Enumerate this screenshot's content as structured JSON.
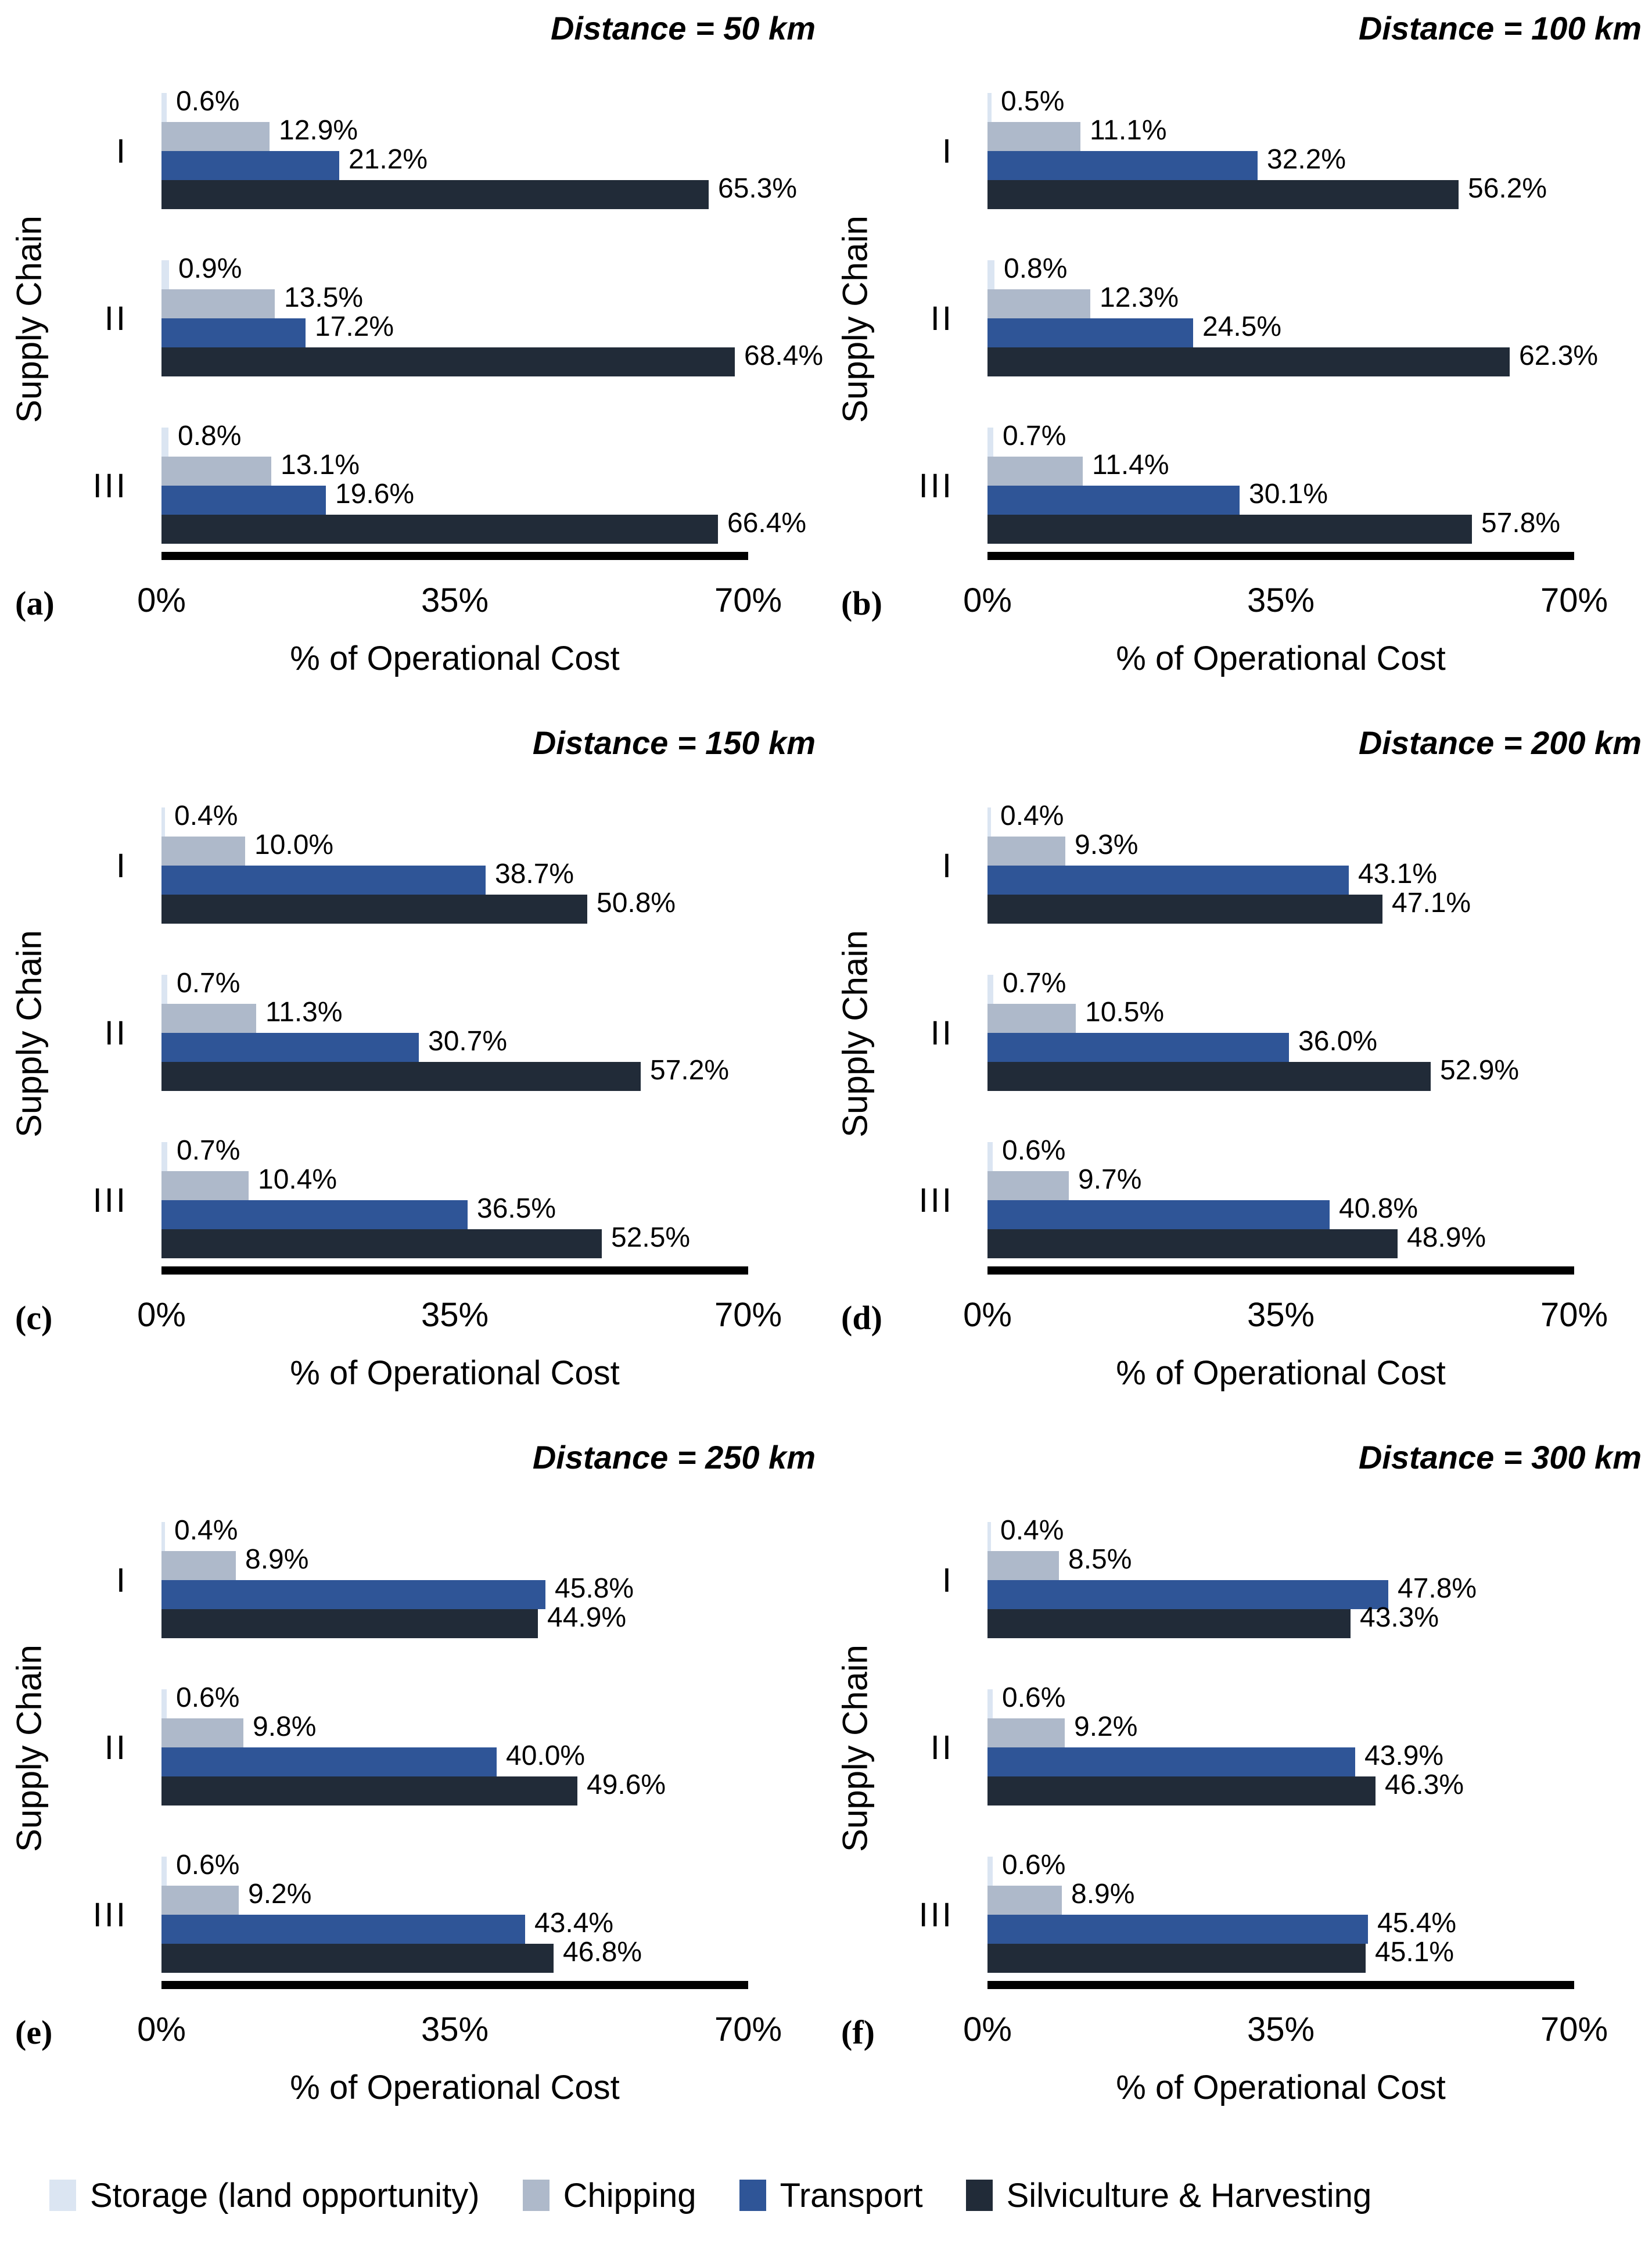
{
  "axis": {
    "xlabel": "% of Operational Cost",
    "ylabel": "Supply Chain",
    "xticks": [
      "0%",
      "35%",
      "70%"
    ],
    "xlim": [
      0,
      70
    ]
  },
  "legend": {
    "items": [
      {
        "key": "storage",
        "label": "Storage (land opportunity)",
        "color": "#dbe5f2"
      },
      {
        "key": "chipping",
        "label": "Chipping",
        "color": "#aeb9ca"
      },
      {
        "key": "transport",
        "label": "Transport",
        "color": "#2f5597"
      },
      {
        "key": "silviculture",
        "label": "Silviculture & Harvesting",
        "color": "#212b38"
      }
    ]
  },
  "chart_data": [
    {
      "type": "bar",
      "orientation": "horizontal",
      "panel_label": "(a)",
      "title": "Distance = 50 km",
      "categories": [
        "I",
        "II",
        "III"
      ],
      "series": [
        {
          "name": "Storage (land opportunity)",
          "values": [
            0.6,
            0.9,
            0.8
          ],
          "labels": [
            "0.6%",
            "0.9%",
            "0.8%"
          ]
        },
        {
          "name": "Chipping",
          "values": [
            12.9,
            13.5,
            13.1
          ],
          "labels": [
            "12.9%",
            "13.5%",
            "13.1%"
          ]
        },
        {
          "name": "Transport",
          "values": [
            21.2,
            17.2,
            19.6
          ],
          "labels": [
            "21.2%",
            "17.2%",
            "19.6%"
          ]
        },
        {
          "name": "Silviculture & Harvesting",
          "values": [
            65.3,
            68.4,
            66.4
          ],
          "labels": [
            "65.3%",
            "68.4%",
            "66.4%"
          ]
        }
      ]
    },
    {
      "type": "bar",
      "orientation": "horizontal",
      "panel_label": "(b)",
      "title": "Distance = 100 km",
      "categories": [
        "I",
        "II",
        "III"
      ],
      "series": [
        {
          "name": "Storage (land opportunity)",
          "values": [
            0.5,
            0.8,
            0.7
          ],
          "labels": [
            "0.5%",
            "0.8%",
            "0.7%"
          ]
        },
        {
          "name": "Chipping",
          "values": [
            11.1,
            12.3,
            11.4
          ],
          "labels": [
            "11.1%",
            "12.3%",
            "11.4%"
          ]
        },
        {
          "name": "Transport",
          "values": [
            32.2,
            24.5,
            30.1
          ],
          "labels": [
            "32.2%",
            "24.5%",
            "30.1%"
          ]
        },
        {
          "name": "Silviculture & Harvesting",
          "values": [
            56.2,
            62.3,
            57.8
          ],
          "labels": [
            "56.2%",
            "62.3%",
            "57.8%"
          ]
        }
      ]
    },
    {
      "type": "bar",
      "orientation": "horizontal",
      "panel_label": "(c)",
      "title": "Distance = 150 km",
      "categories": [
        "I",
        "II",
        "III"
      ],
      "series": [
        {
          "name": "Storage (land opportunity)",
          "values": [
            0.4,
            0.7,
            0.7
          ],
          "labels": [
            "0.4%",
            "0.7%",
            "0.7%"
          ]
        },
        {
          "name": "Chipping",
          "values": [
            10.0,
            11.3,
            10.4
          ],
          "labels": [
            "10.0%",
            "11.3%",
            "10.4%"
          ]
        },
        {
          "name": "Transport",
          "values": [
            38.7,
            30.7,
            36.5
          ],
          "labels": [
            "38.7%",
            "30.7%",
            "36.5%"
          ]
        },
        {
          "name": "Silviculture & Harvesting",
          "values": [
            50.8,
            57.2,
            52.5
          ],
          "labels": [
            "50.8%",
            "57.2%",
            "52.5%"
          ]
        }
      ]
    },
    {
      "type": "bar",
      "orientation": "horizontal",
      "panel_label": "(d)",
      "title": "Distance = 200 km",
      "categories": [
        "I",
        "II",
        "III"
      ],
      "series": [
        {
          "name": "Storage (land opportunity)",
          "values": [
            0.4,
            0.7,
            0.6
          ],
          "labels": [
            "0.4%",
            "0.7%",
            "0.6%"
          ]
        },
        {
          "name": "Chipping",
          "values": [
            9.3,
            10.5,
            9.7
          ],
          "labels": [
            "9.3%",
            "10.5%",
            "9.7%"
          ]
        },
        {
          "name": "Transport",
          "values": [
            43.1,
            36.0,
            40.8
          ],
          "labels": [
            "43.1%",
            "36.0%",
            "40.8%"
          ]
        },
        {
          "name": "Silviculture & Harvesting",
          "values": [
            47.1,
            52.9,
            48.9
          ],
          "labels": [
            "47.1%",
            "52.9%",
            "48.9%"
          ]
        }
      ]
    },
    {
      "type": "bar",
      "orientation": "horizontal",
      "panel_label": "(e)",
      "title": "Distance = 250 km",
      "categories": [
        "I",
        "II",
        "III"
      ],
      "series": [
        {
          "name": "Storage (land opportunity)",
          "values": [
            0.4,
            0.6,
            0.6
          ],
          "labels": [
            "0.4%",
            "0.6%",
            "0.6%"
          ]
        },
        {
          "name": "Chipping",
          "values": [
            8.9,
            9.8,
            9.2
          ],
          "labels": [
            "8.9%",
            "9.8%",
            "9.2%"
          ]
        },
        {
          "name": "Transport",
          "values": [
            45.8,
            40.0,
            43.4
          ],
          "labels": [
            "45.8%",
            "40.0%",
            "43.4%"
          ]
        },
        {
          "name": "Silviculture & Harvesting",
          "values": [
            44.9,
            49.6,
            46.8
          ],
          "labels": [
            "44.9%",
            "49.6%",
            "46.8%"
          ]
        }
      ]
    },
    {
      "type": "bar",
      "orientation": "horizontal",
      "panel_label": "(f)",
      "title": "Distance = 300 km",
      "categories": [
        "I",
        "II",
        "III"
      ],
      "series": [
        {
          "name": "Storage (land opportunity)",
          "values": [
            0.4,
            0.6,
            0.6
          ],
          "labels": [
            "0.4%",
            "0.6%",
            "0.6%"
          ]
        },
        {
          "name": "Chipping",
          "values": [
            8.5,
            9.2,
            8.9
          ],
          "labels": [
            "8.5%",
            "9.2%",
            "8.9%"
          ]
        },
        {
          "name": "Transport",
          "values": [
            47.8,
            43.9,
            45.4
          ],
          "labels": [
            "47.8%",
            "43.9%",
            "45.4%"
          ]
        },
        {
          "name": "Silviculture & Harvesting",
          "values": [
            43.3,
            46.3,
            45.1
          ],
          "labels": [
            "43.3%",
            "46.3%",
            "45.1%"
          ]
        }
      ]
    }
  ]
}
